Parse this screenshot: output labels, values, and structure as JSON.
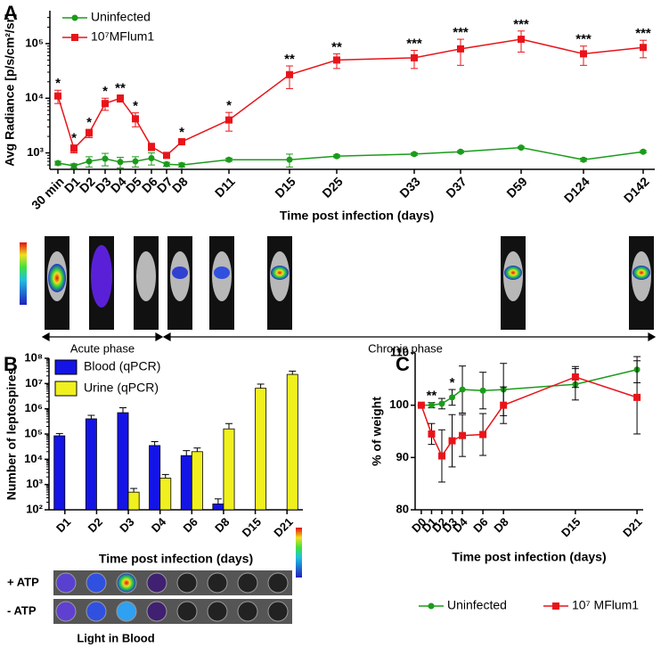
{
  "panels": [
    "A",
    "B",
    "C"
  ],
  "chart_data": [
    {
      "type": "line",
      "log_y": true,
      "ylabel": "Avg Radiance [p/s/cm²/sr]",
      "xlabel": "Time post infection (days)",
      "categories": [
        "30 min",
        "D1",
        "D2",
        "D3",
        "D4",
        "D5",
        "D6",
        "D7",
        "D8",
        "D11",
        "D15",
        "D25",
        "D33",
        "D37",
        "D59",
        "D124",
        "D142"
      ],
      "series": [
        {
          "name": "Uninfected",
          "color": "#1a9c1a",
          "marker": "circle",
          "values": [
            650,
            580,
            700,
            780,
            680,
            700,
            800,
            620,
            600,
            750,
            750,
            870,
            950,
            1050,
            1250,
            750,
            1050
          ],
          "errors": [
            50,
            50,
            150,
            200,
            150,
            150,
            200,
            50,
            50,
            50,
            200,
            50,
            50,
            50,
            50,
            50,
            50
          ]
        },
        {
          "name": "10⁷MFlum1",
          "color": "#e8141a",
          "marker": "square",
          "values": [
            11000,
            1200,
            2300,
            8000,
            10000,
            4200,
            1300,
            900,
            1600,
            4000,
            27000,
            50000,
            55000,
            80000,
            120000,
            65000,
            85000
          ],
          "errors": [
            3000,
            200,
            400,
            2000,
            1500,
            1200,
            200,
            100,
            200,
            1500,
            12000,
            15000,
            20000,
            40000,
            50000,
            25000,
            30000
          ]
        }
      ],
      "significance": [
        "*",
        "*",
        "*",
        "*",
        "**",
        "*",
        null,
        null,
        "*",
        "*",
        "**",
        "**",
        "***",
        "***",
        "***",
        "***",
        "***"
      ],
      "ylim": [
        500,
        400000
      ],
      "yticks": [
        {
          "value": 1000,
          "label": "10³"
        },
        {
          "value": 10000,
          "label": "10⁴"
        },
        {
          "value": 100000,
          "label": "10⁵"
        }
      ],
      "legend": "upper-left"
    },
    {
      "type": "bar",
      "log_y": true,
      "ylabel": "Number of leptospires",
      "xlabel": "Time post infection (days)",
      "categories": [
        "D1",
        "D2",
        "D3",
        "D4",
        "D6",
        "D8",
        "D15",
        "D21"
      ],
      "series": [
        {
          "name": "Blood (qPCR)",
          "color": "#1414e6",
          "values": [
            85000,
            400000,
            700000,
            35000,
            14000,
            170,
            null,
            null
          ],
          "errors": [
            20000,
            150000,
            400000,
            15000,
            8000,
            100,
            null,
            null
          ]
        },
        {
          "name": "Urine (qPCR)",
          "color": "#f0f01e",
          "values": [
            null,
            null,
            500,
            1800,
            20000,
            160000,
            6500000,
            23000000
          ],
          "errors": [
            null,
            null,
            200,
            700,
            8000,
            100000,
            3000000,
            8000000
          ]
        }
      ],
      "ylim": [
        100,
        100000000
      ],
      "yticks": [
        {
          "value": 100,
          "label": "10²"
        },
        {
          "value": 1000,
          "label": "10³"
        },
        {
          "value": 10000,
          "label": "10⁴"
        },
        {
          "value": 100000,
          "label": "10⁵"
        },
        {
          "value": 1000000,
          "label": "10⁶"
        },
        {
          "value": 10000000,
          "label": "10⁷"
        },
        {
          "value": 100000000,
          "label": "10⁸"
        }
      ],
      "legend": "upper-left"
    },
    {
      "type": "line",
      "log_y": false,
      "ylabel": "% of weight",
      "xlabel": "Time post infection (days)",
      "x": [
        0,
        1,
        2,
        3,
        4,
        6,
        8,
        15,
        21
      ],
      "series": [
        {
          "name": "Uninfected",
          "color": "#1a9c1a",
          "marker": "circle",
          "values": [
            100,
            100,
            100.3,
            101.5,
            103,
            102.8,
            103,
            104,
            106.8
          ],
          "errors": [
            0,
            0.5,
            1,
            1.5,
            4.5,
            3.5,
            5,
            3,
            2.5
          ]
        },
        {
          "name": "10⁷ MFlum1",
          "color": "#e8141a",
          "marker": "square",
          "values": [
            100,
            94.5,
            90.3,
            93.2,
            94.2,
            94.4,
            100,
            105.4,
            101.5
          ],
          "errors": [
            0,
            2,
            5,
            5,
            4,
            4,
            3.5,
            2,
            7
          ]
        }
      ],
      "significance": [
        null,
        "**",
        null,
        "*",
        null,
        null,
        null,
        null,
        null
      ],
      "xlim": [
        -0.6,
        21.6
      ],
      "xticks": [
        {
          "value": 0,
          "label": "D0"
        },
        {
          "value": 1,
          "label": "D1"
        },
        {
          "value": 2,
          "label": "D2"
        },
        {
          "value": 3,
          "label": "D3"
        },
        {
          "value": 4,
          "label": "D4"
        },
        {
          "value": 6,
          "label": "D6"
        },
        {
          "value": 8,
          "label": "D8"
        },
        {
          "value": 15,
          "label": "D15"
        },
        {
          "value": 21,
          "label": "D21"
        }
      ],
      "ylim": [
        80,
        110
      ],
      "yticks": [
        80,
        90,
        100,
        110
      ],
      "legend": "below"
    }
  ],
  "imaging": {
    "phases": [
      "Acute phase",
      "Chronic phase"
    ]
  },
  "blood_imaging": {
    "rows": [
      "+ ATP",
      "- ATP"
    ],
    "caption": "Light in Blood"
  }
}
